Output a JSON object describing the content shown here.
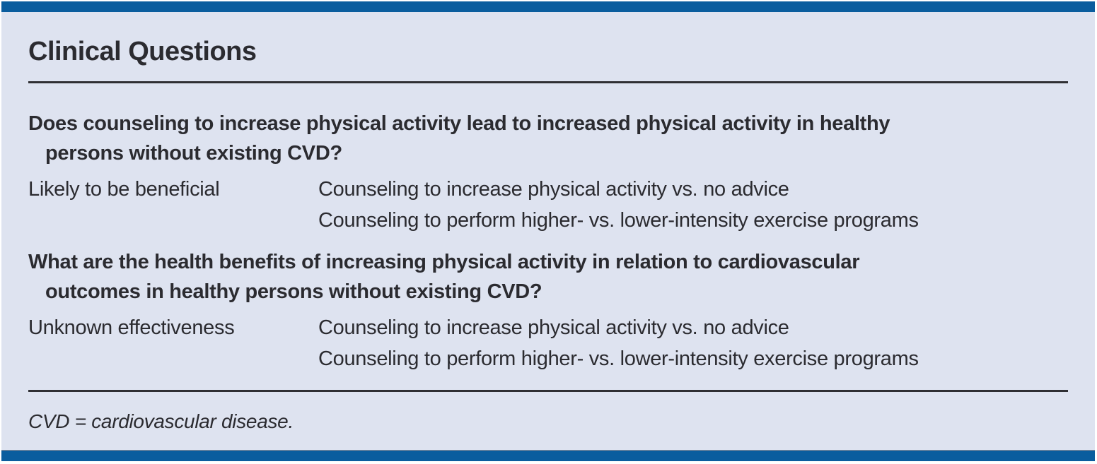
{
  "colors": {
    "accent_bar": "#0a5d9e",
    "panel_background": "#dee3f0",
    "text": "#2b2b30",
    "rule": "#2f2f33"
  },
  "header": {
    "title": "Clinical Questions"
  },
  "sections": [
    {
      "question_lines": [
        "Does counseling to increase physical activity lead to increased physical activity in healthy",
        "persons without existing CVD?"
      ],
      "rows": [
        {
          "rating": "Likely to be beneficial",
          "intervention": "Counseling to increase physical activity vs. no advice"
        },
        {
          "rating": "",
          "intervention": "Counseling to perform higher- vs. lower-intensity exercise programs"
        }
      ]
    },
    {
      "question_lines": [
        "What are the health benefits of increasing physical activity in relation to cardiovascular",
        "outcomes in healthy persons without existing CVD?"
      ],
      "rows": [
        {
          "rating": "Unknown effectiveness",
          "intervention": "Counseling to increase physical activity vs. no advice"
        },
        {
          "rating": "",
          "intervention": "Counseling to perform higher- vs. lower-intensity exercise programs"
        }
      ]
    }
  ],
  "footnote": {
    "text": "CVD = cardiovascular disease."
  }
}
